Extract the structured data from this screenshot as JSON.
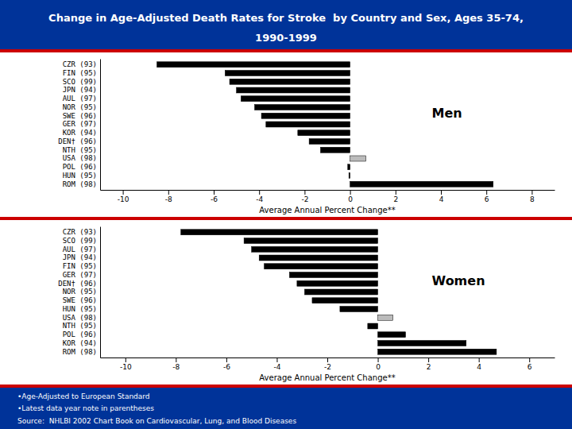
{
  "chart_data": [
    {
      "type": "bar",
      "orientation": "horizontal",
      "title": "Change in Age-Adjusted Death Rates for Stroke  by Country and Sex, Ages 35-74,",
      "subtitle": "1990-1999",
      "categories": [
        "CZR (93)",
        "FIN (95)",
        "SCO (99)",
        "JPN (94)",
        "AUL (97)",
        "NOR (95)",
        "SWE (96)",
        "GER (97)",
        "KOR (94)",
        "DEN† (96)",
        "NTH (95)",
        "USA (98)",
        "POL (96)",
        "HUN (95)",
        "ROM (98)"
      ],
      "values": [
        -8.5,
        -5.5,
        -5.3,
        -5.0,
        -4.8,
        -4.2,
        -3.9,
        -3.7,
        -2.3,
        -1.8,
        -1.3,
        0.7,
        -0.1,
        -0.05,
        6.3
      ],
      "colors": [
        "black",
        "black",
        "black",
        "black",
        "black",
        "black",
        "black",
        "black",
        "black",
        "black",
        "black",
        "#bbbbbb",
        "black",
        "black",
        "black"
      ],
      "xlabel": "Average Annual Percent Change**",
      "xlim": [
        -11,
        9
      ],
      "xticks": [
        -10,
        -8,
        -6,
        -4,
        -2,
        0,
        2,
        4,
        6,
        8
      ],
      "annotations": [
        "Men"
      ]
    },
    {
      "type": "bar",
      "orientation": "horizontal",
      "categories": [
        "CZR (93)",
        "SCO (99)",
        "AUL (97)",
        "JPN (94)",
        "FIN (95)",
        "GER (97)",
        "DEN† (96)",
        "NOR (95)",
        "SWE (96)",
        "HUN (95)",
        "USA (98)",
        "NTH (95)",
        "POL (96)",
        "KOR (94)",
        "ROM (98)"
      ],
      "values": [
        -7.8,
        -5.3,
        -5.0,
        -4.7,
        -4.5,
        -3.5,
        -3.2,
        -2.9,
        -2.6,
        -1.5,
        0.6,
        -0.4,
        1.1,
        3.5,
        4.7
      ],
      "colors": [
        "black",
        "black",
        "black",
        "black",
        "black",
        "black",
        "black",
        "black",
        "black",
        "black",
        "#bbbbbb",
        "black",
        "black",
        "black",
        "black"
      ],
      "xlabel": "Average Annual Percent Change**",
      "xlim": [
        -11,
        7
      ],
      "xticks": [
        -10,
        -8,
        -6,
        -4,
        -2,
        0,
        2,
        4,
        6
      ],
      "annotations": [
        "Women",
        "•Age-Adjusted to European Standard",
        "•Latest data year note in parentheses",
        "Source:  NHLBI 2002 Chart Book on Cardiovascular, Lung, and Blood Diseases"
      ]
    }
  ]
}
